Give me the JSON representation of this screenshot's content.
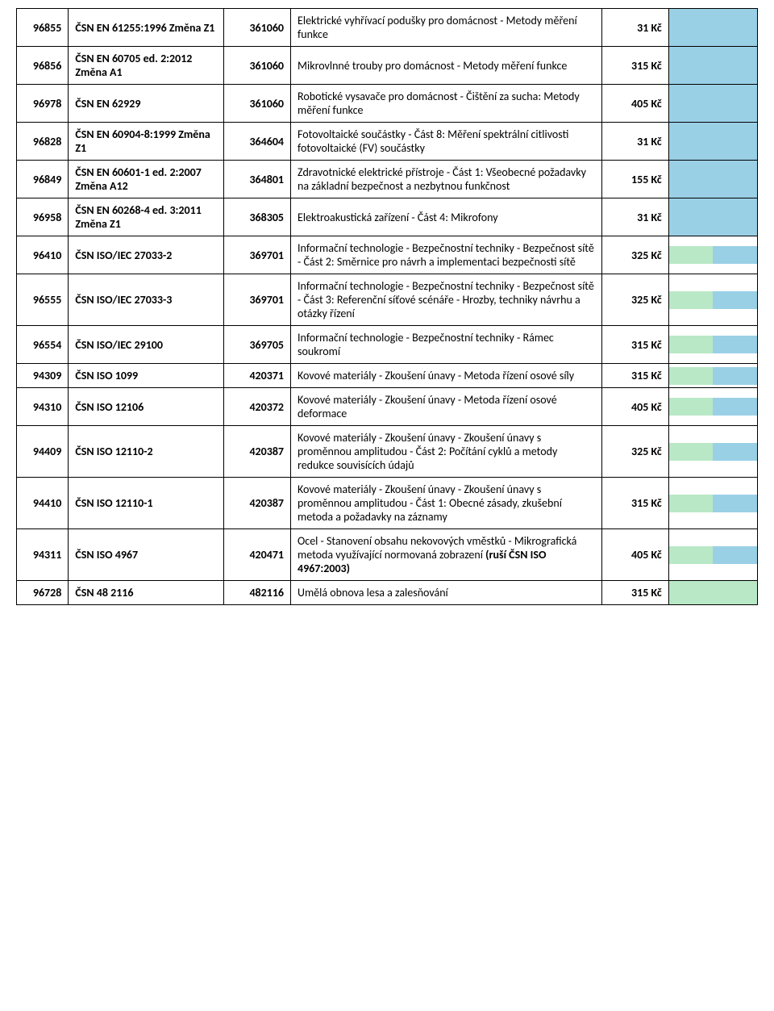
{
  "colors": {
    "blue": "#9ad0e6",
    "green": "#b9e8c6",
    "border": "#000000",
    "black": "#000000"
  },
  "rows": [
    {
      "id": "96855",
      "standard": "ČSN EN 61255:1996 Změna Z1",
      "code": "361060",
      "desc": "Elektrické vyhřívací podušky pro domácnost - Metody měření funkce",
      "price": "31 Kč",
      "flag": "blue"
    },
    {
      "id": "96856",
      "standard": "ČSN EN 60705 ed. 2:2012 Změna A1",
      "code": "361060",
      "desc": "Mikrovlnné trouby pro domácnost - Metody měření funkce",
      "price": "315 Kč",
      "flag": "blue"
    },
    {
      "id": "96978",
      "standard": "ČSN EN 62929",
      "code": "361060",
      "desc": "Robotické vysavače pro domácnost - Čištění za sucha: Metody měření funkce",
      "price": "405 Kč",
      "flag": "blue"
    },
    {
      "id": "96828",
      "standard": "ČSN EN 60904-8:1999 Změna Z1",
      "code": "364604",
      "desc": "Fotovoltaické součástky - Část 8: Měření spektrální citlivosti fotovoltaické (FV) součástky",
      "price": "31 Kč",
      "flag": "blue"
    },
    {
      "id": "96849",
      "standard": "ČSN EN 60601-1 ed. 2:2007 Změna A12",
      "code": "364801",
      "desc": "Zdravotnické elektrické přístroje - Část 1: Všeobecné požadavky na základní bezpečnost a nezbytnou funkčnost",
      "price": "155 Kč",
      "flag": "blue"
    },
    {
      "id": "96958",
      "standard": "ČSN EN 60268-4 ed. 3:2011 Změna Z1",
      "code": "368305",
      "desc": "Elektroakustická zařízení - Část 4: Mikrofony",
      "price": "31 Kč",
      "flag": "blue"
    },
    {
      "id": "96410",
      "standard": "ČSN ISO/IEC 27033-2",
      "code": "369701",
      "desc": "Informační technologie - Bezpečnostní techniky - Bezpečnost sítě - Část 2: Směrnice pro návrh a implementaci bezpečnosti sítě",
      "price": "325 Kč",
      "flag": "split"
    },
    {
      "id": "96555",
      "standard": "ČSN ISO/IEC 27033-3",
      "code": "369701",
      "desc": "Informační technologie - Bezpečnostní techniky - Bezpečnost sítě - Část 3: Referenční síťové scénáře - Hrozby, techniky návrhu a otázky řízení",
      "price": "325 Kč",
      "flag": "split"
    },
    {
      "id": "96554",
      "standard": "ČSN ISO/IEC 29100",
      "code": "369705",
      "desc": "Informační technologie - Bezpečnostní techniky - Rámec soukromí",
      "price": "315 Kč",
      "flag": "split"
    },
    {
      "id": "94309",
      "standard": "ČSN ISO 1099",
      "code": "420371",
      "desc": "Kovové materiály - Zkoušení únavy - Metoda řízení osové síly",
      "price": "315 Kč",
      "flag": "split"
    },
    {
      "id": "94310",
      "standard": "ČSN ISO 12106",
      "code": "420372",
      "desc": "Kovové materiály - Zkoušení únavy - Metoda řízení osové deformace",
      "price": "405 Kč",
      "flag": "split"
    },
    {
      "id": "94409",
      "standard": "ČSN ISO 12110-2",
      "code": "420387",
      "desc": "Kovové materiály - Zkoušení únavy - Zkoušení únavy s proměnnou amplitudou - Část 2: Počítání cyklů a metody redukce souvisících údajů",
      "price": "325 Kč",
      "flag": "split"
    },
    {
      "id": "94410",
      "standard": "ČSN ISO 12110-1",
      "code": "420387",
      "desc": "Kovové materiály - Zkoušení únavy - Zkoušení únavy s proměnnou amplitudou - Část 1: Obecné zásady, zkušební metoda a požadavky na záznamy",
      "price": "315 Kč",
      "flag": "split"
    },
    {
      "id": "94311",
      "standard": "ČSN ISO 4967",
      "code": "420471",
      "desc_html": "Ocel - Stanovení obsahu nekovových vměstků - Mikrografická metoda využívající normovaná zobrazení  <b>(ruší ČSN ISO 4967:2003)</b>",
      "price": "405 Kč",
      "flag": "split"
    },
    {
      "id": "96728",
      "standard": "ČSN 48 2116",
      "code": "482116",
      "desc": "Umělá obnova lesa a zalesňování",
      "price": "315 Kč",
      "flag": "green"
    }
  ]
}
